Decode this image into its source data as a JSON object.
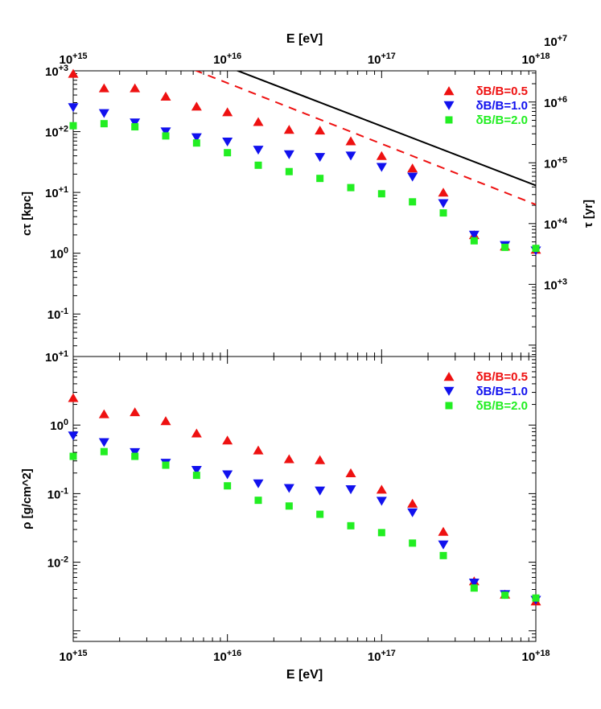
{
  "chart_data": [
    {
      "type": "scatter",
      "panel": "top",
      "xlabel_top": "E [eV]",
      "ylabel": "cτ [kpc]",
      "y2label": "τ [yr]",
      "x_scale": "log",
      "y_scale": "log",
      "xlim": [
        1000000000000000.0,
        1e+18
      ],
      "ylim": [
        0.02,
        1000
      ],
      "y2lim": [
        65,
        3260000.0
      ],
      "x_ticks": [
        {
          "value": 1000000000000000.0,
          "label": "10",
          "exp": "+15"
        },
        {
          "value": 1e+16,
          "label": "10",
          "exp": "+16"
        },
        {
          "value": 1e+17,
          "label": "10",
          "exp": "+17"
        },
        {
          "value": 1e+18,
          "label": "10",
          "exp": "+18"
        }
      ],
      "y_ticks": [
        {
          "value": 1000,
          "label": "10",
          "exp": "+3"
        },
        {
          "value": 100,
          "label": "10",
          "exp": "+2"
        },
        {
          "value": 10,
          "label": "10",
          "exp": "+1"
        },
        {
          "value": 1,
          "label": "10",
          "exp": "0"
        },
        {
          "value": 0.1,
          "label": "10",
          "exp": "-1"
        }
      ],
      "y2_ticks": [
        {
          "value": 10000000.0,
          "label": "10",
          "exp": "+7"
        },
        {
          "value": 1000000.0,
          "label": "10",
          "exp": "+6"
        },
        {
          "value": 100000.0,
          "label": "10",
          "exp": "+5"
        },
        {
          "value": 10000.0,
          "label": "10",
          "exp": "+4"
        },
        {
          "value": 1000.0,
          "label": "10",
          "exp": "+3"
        }
      ],
      "legend_position": "top-right",
      "series": [
        {
          "name": "δB/B=0.5",
          "marker": "triangle-up",
          "color": "#ee1111",
          "x": [
            1000000000000000.0,
            1585000000000000.0,
            2512000000000000.0,
            3981000000000000.0,
            6310000000000000.0,
            1e+16,
            1.585e+16,
            2.512e+16,
            3.981e+16,
            6.31e+16,
            1e+17,
            1.585e+17,
            2.512e+17,
            3.981e+17,
            6.31e+17,
            1e+18
          ],
          "y": [
            900,
            520,
            520,
            380,
            260,
            210,
            145,
            108,
            105,
            70,
            40,
            25,
            10,
            2.0,
            1.3,
            1.15
          ]
        },
        {
          "name": "δB/B=1.0",
          "marker": "triangle-down",
          "color": "#1111ee",
          "x": [
            1000000000000000.0,
            1585000000000000.0,
            2512000000000000.0,
            3981000000000000.0,
            6310000000000000.0,
            1e+16,
            1.585e+16,
            2.512e+16,
            3.981e+16,
            6.31e+16,
            1e+17,
            1.585e+17,
            2.512e+17,
            3.981e+17,
            6.31e+17,
            1e+18
          ],
          "y": [
            250,
            200,
            140,
            100,
            80,
            68,
            50,
            42,
            38,
            40,
            26,
            18,
            6.6,
            2.0,
            1.35,
            1.1
          ]
        },
        {
          "name": "δB/B=2.0",
          "marker": "square",
          "color": "#22ee22",
          "x": [
            1000000000000000.0,
            1585000000000000.0,
            2512000000000000.0,
            3981000000000000.0,
            6310000000000000.0,
            1e+16,
            1.585e+16,
            2.512e+16,
            3.981e+16,
            6.31e+16,
            1e+17,
            1.585e+17,
            2.512e+17,
            3.981e+17,
            6.31e+17,
            1e+18
          ],
          "y": [
            125,
            135,
            120,
            85,
            65,
            45,
            28,
            22,
            17,
            12,
            9.5,
            7,
            4.6,
            1.6,
            1.25,
            1.2
          ]
        }
      ],
      "lines": [
        {
          "style": "solid",
          "color": "#000000",
          "x": [
            1000000000000000.0,
            1e+18
          ],
          "y": [
            11000,
            13
          ]
        },
        {
          "style": "dashed",
          "color": "#ee1111",
          "x": [
            1000000000000000.0,
            1e+18
          ],
          "y": [
            6300,
            6.3
          ]
        }
      ]
    },
    {
      "type": "scatter",
      "panel": "bottom",
      "xlabel": "E [eV]",
      "ylabel": "ρ [g/cm^2]",
      "x_scale": "log",
      "y_scale": "log",
      "xlim": [
        1000000000000000.0,
        1e+18
      ],
      "ylim": [
        0.0007,
        10
      ],
      "x_ticks": [
        {
          "value": 1000000000000000.0,
          "label": "10",
          "exp": "+15"
        },
        {
          "value": 1e+16,
          "label": "10",
          "exp": "+16"
        },
        {
          "value": 1e+17,
          "label": "10",
          "exp": "+17"
        },
        {
          "value": 1e+18,
          "label": "10",
          "exp": "+18"
        }
      ],
      "y_ticks": [
        {
          "value": 10,
          "label": "10",
          "exp": "+1"
        },
        {
          "value": 1,
          "label": "10",
          "exp": "0"
        },
        {
          "value": 0.1,
          "label": "10",
          "exp": "-1"
        },
        {
          "value": 0.01,
          "label": "10",
          "exp": "-2"
        }
      ],
      "legend_position": "top-right",
      "series": [
        {
          "name": "δB/B=0.5",
          "marker": "triangle-up",
          "color": "#ee1111",
          "x": [
            1000000000000000.0,
            1585000000000000.0,
            2512000000000000.0,
            3981000000000000.0,
            6310000000000000.0,
            1e+16,
            1.585e+16,
            2.512e+16,
            3.981e+16,
            6.31e+16,
            1e+17,
            1.585e+17,
            2.512e+17,
            3.981e+17,
            6.31e+17,
            1e+18
          ],
          "y": [
            2.5,
            1.45,
            1.55,
            1.15,
            0.76,
            0.6,
            0.43,
            0.32,
            0.31,
            0.2,
            0.115,
            0.072,
            0.028,
            0.0053,
            0.0034,
            0.0027
          ]
        },
        {
          "name": "δB/B=1.0",
          "marker": "triangle-down",
          "color": "#1111ee",
          "x": [
            1000000000000000.0,
            1585000000000000.0,
            2512000000000000.0,
            3981000000000000.0,
            6310000000000000.0,
            1e+16,
            1.585e+16,
            2.512e+16,
            3.981e+16,
            6.31e+16,
            1e+17,
            1.585e+17,
            2.512e+17,
            3.981e+17,
            6.31e+17,
            1e+18
          ],
          "y": [
            0.7,
            0.56,
            0.4,
            0.28,
            0.22,
            0.19,
            0.14,
            0.12,
            0.11,
            0.115,
            0.078,
            0.053,
            0.018,
            0.005,
            0.0034,
            0.0028
          ]
        },
        {
          "name": "δB/B=2.0",
          "marker": "square",
          "color": "#22ee22",
          "x": [
            1000000000000000.0,
            1585000000000000.0,
            2512000000000000.0,
            3981000000000000.0,
            6310000000000000.0,
            1e+16,
            1.585e+16,
            2.512e+16,
            3.981e+16,
            6.31e+16,
            1e+17,
            1.585e+17,
            2.512e+17,
            3.981e+17,
            6.31e+17,
            1e+18
          ],
          "y": [
            0.35,
            0.41,
            0.35,
            0.26,
            0.185,
            0.13,
            0.08,
            0.066,
            0.05,
            0.034,
            0.027,
            0.019,
            0.0125,
            0.0042,
            0.0033,
            0.003
          ]
        }
      ]
    }
  ]
}
